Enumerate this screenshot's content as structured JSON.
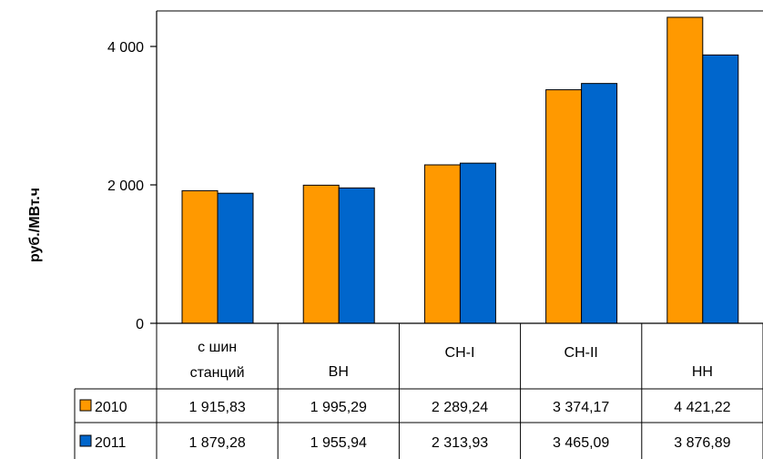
{
  "chart_data": {
    "type": "bar",
    "title": "",
    "xlabel": "",
    "ylabel": "руб./МВт.ч",
    "ylim": [
      0,
      4500
    ],
    "yticks": [
      0,
      2000,
      4000
    ],
    "ytick_labels": [
      "0",
      "2 000",
      "4 000"
    ],
    "grid": false,
    "legend": "data-table",
    "categories": [
      [
        "с шин",
        "станций"
      ],
      [
        "ВН"
      ],
      [
        "СН-I"
      ],
      [
        "СН-II"
      ],
      [
        "НН"
      ]
    ],
    "series": [
      {
        "name": "2010",
        "color": "#FF9900",
        "values": [
          1915.83,
          1995.29,
          2289.24,
          3374.17,
          4421.22
        ],
        "labels": [
          "1 915,83",
          "1 995,29",
          "2 289,24",
          "3 374,17",
          "4 421,22"
        ]
      },
      {
        "name": "2011",
        "color": "#0066CC",
        "values": [
          1879.28,
          1955.94,
          2313.93,
          3465.09,
          3876.89
        ],
        "labels": [
          "1 879,28",
          "1 955,94",
          "2 313,93",
          "3 465,09",
          "3 876,89"
        ]
      }
    ]
  }
}
